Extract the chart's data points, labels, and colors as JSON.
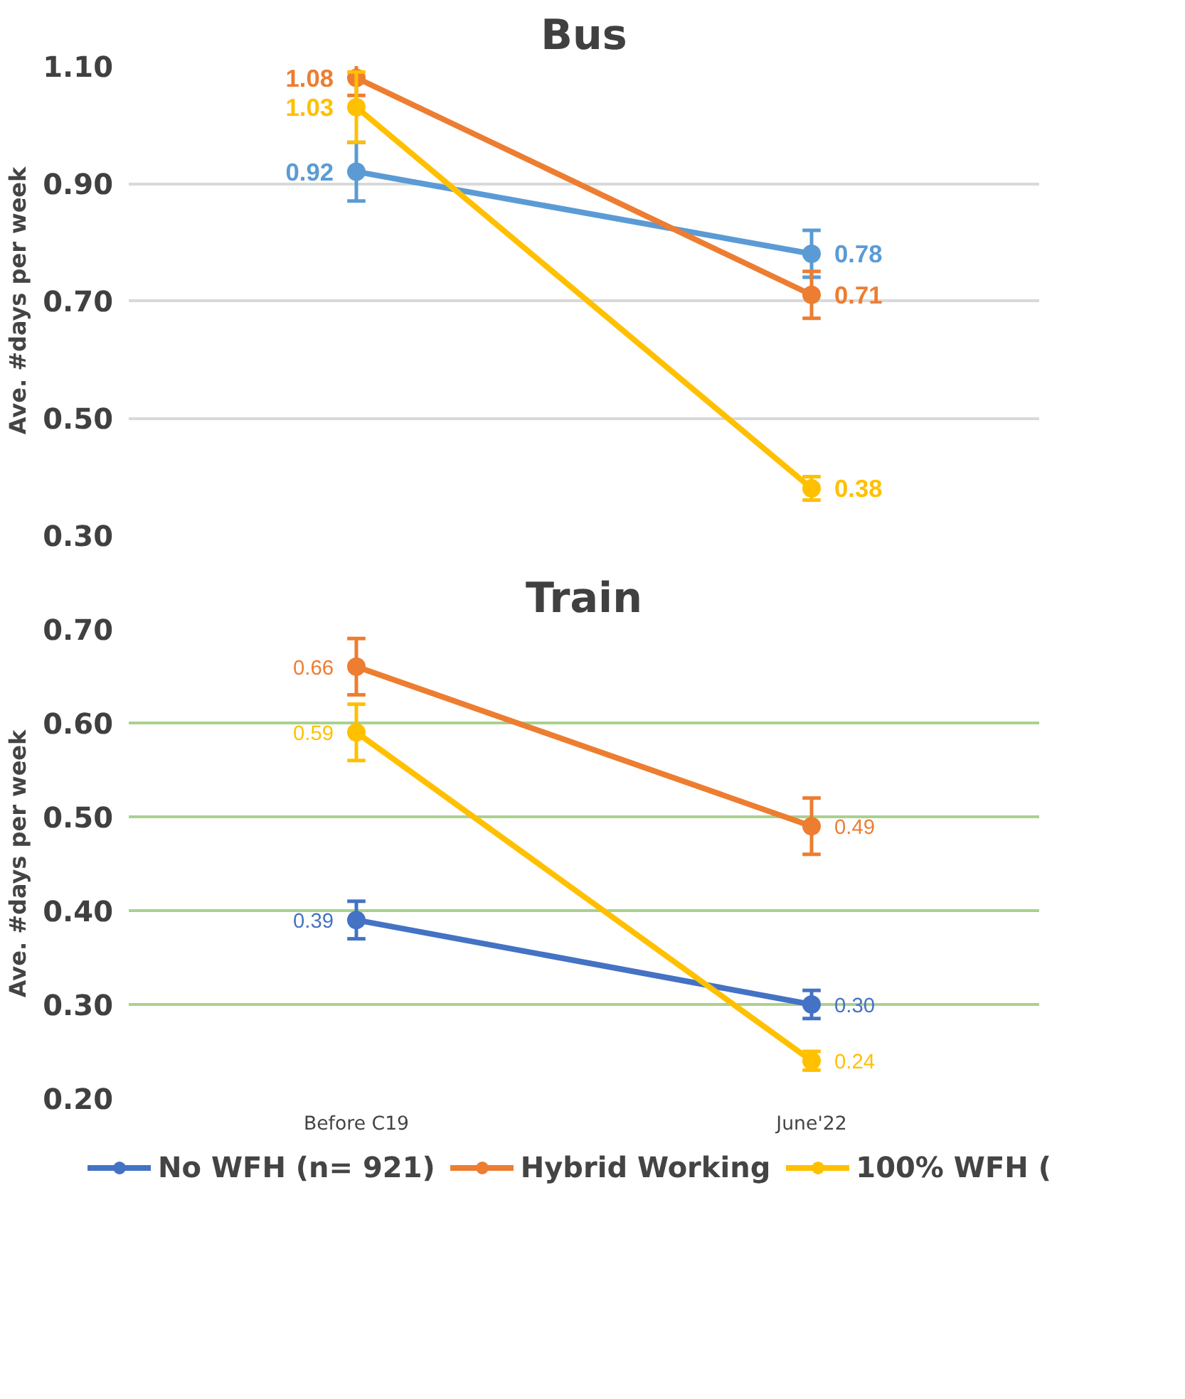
{
  "chart_data": [
    {
      "type": "line",
      "title": "Bus",
      "ylabel": "Ave. #days per week",
      "categories": [
        null,
        null
      ],
      "tick_labels": "y",
      "ylim": [
        0.3,
        1.1
      ],
      "yticks": [
        {
          "value": 0.3,
          "label": "0.30"
        },
        {
          "value": 0.5,
          "label": "0.50"
        },
        {
          "value": 0.7,
          "label": "0.70"
        },
        {
          "value": 0.9,
          "label": "0.90"
        },
        {
          "value": 1.1,
          "label": "1.10"
        }
      ],
      "grid": "y",
      "marker": "circle",
      "series": [
        {
          "color": "#5b9bd5",
          "values": [
            0.92,
            0.78
          ],
          "value_labels": [
            "0.92",
            "0.78"
          ],
          "errors": [
            0.05,
            0.04
          ]
        },
        {
          "color": "#ed7d31",
          "values": [
            1.08,
            0.71
          ],
          "value_labels": [
            "1.08",
            "0.71"
          ],
          "errors": [
            0.03,
            0.04
          ]
        },
        {
          "color": "#ffc000",
          "values": [
            1.03,
            0.38
          ],
          "value_labels": [
            "1.03",
            "0.38"
          ],
          "errors": [
            0.06,
            0.02
          ]
        }
      ]
    },
    {
      "type": "line",
      "title": "Train",
      "ylabel": "Ave. #days per week",
      "categories": [
        "Before C19",
        "June'22"
      ],
      "ylim": [
        0.2,
        0.7
      ],
      "yticks": [
        {
          "value": 0.2,
          "label": "0.20"
        },
        {
          "value": 0.3,
          "label": "0.30"
        },
        {
          "value": 0.4,
          "label": "0.40"
        },
        {
          "value": 0.5,
          "label": "0.50"
        },
        {
          "value": 0.6,
          "label": "0.60"
        },
        {
          "value": 0.7,
          "label": "0.70"
        }
      ],
      "grid": "y",
      "marker": "circle",
      "legend": "bottom",
      "series": [
        {
          "name": "No WFH (n= 921)",
          "color": "#4472c4",
          "values": [
            0.39,
            0.3
          ],
          "value_labels": [
            "0.39",
            "0.30"
          ],
          "errors": [
            0.02,
            0.015
          ]
        },
        {
          "name": "Hybrid Working",
          "color": "#ed7d31",
          "values": [
            0.66,
            0.49
          ],
          "value_labels": [
            "0.66",
            "0.49"
          ],
          "errors": [
            0.03,
            0.03
          ]
        },
        {
          "name": "100% WFH (",
          "color": "#ffc000",
          "values": [
            0.59,
            0.24
          ],
          "value_labels": [
            "0.59",
            "0.24"
          ],
          "errors": [
            0.03,
            0.01
          ]
        }
      ]
    }
  ]
}
